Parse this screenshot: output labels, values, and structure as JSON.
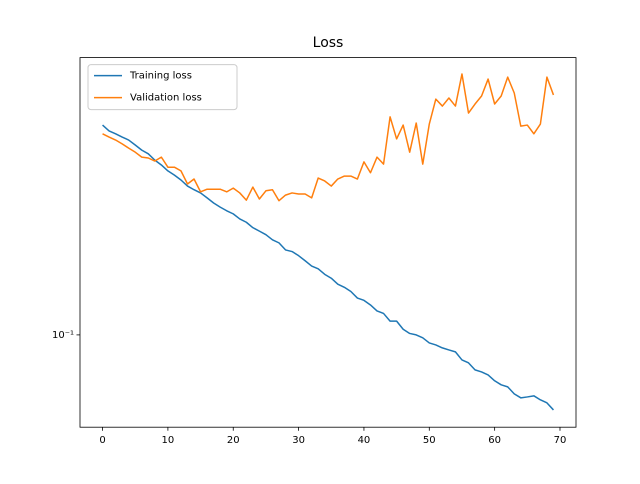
{
  "chart_data": {
    "type": "line",
    "title": "Loss",
    "x": [
      0,
      1,
      2,
      3,
      4,
      5,
      6,
      7,
      8,
      9,
      10,
      11,
      12,
      13,
      14,
      15,
      16,
      17,
      18,
      19,
      20,
      21,
      22,
      23,
      24,
      25,
      26,
      27,
      28,
      29,
      30,
      31,
      32,
      33,
      34,
      35,
      36,
      37,
      38,
      39,
      40,
      41,
      42,
      43,
      44,
      45,
      46,
      47,
      48,
      49,
      50,
      51,
      52,
      53,
      54,
      55,
      56,
      57,
      58,
      59,
      60,
      61,
      62,
      63,
      64,
      65,
      66,
      67,
      68,
      69
    ],
    "series": [
      {
        "name": "Training loss",
        "color": "#1f77b4",
        "values": [
          0.427,
          0.41,
          0.402,
          0.393,
          0.385,
          0.372,
          0.359,
          0.35,
          0.335,
          0.324,
          0.311,
          0.302,
          0.292,
          0.28,
          0.273,
          0.267,
          0.258,
          0.249,
          0.242,
          0.236,
          0.231,
          0.223,
          0.218,
          0.21,
          0.205,
          0.2,
          0.193,
          0.189,
          0.18,
          0.178,
          0.173,
          0.167,
          0.161,
          0.158,
          0.152,
          0.148,
          0.142,
          0.139,
          0.135,
          0.129,
          0.127,
          0.123,
          0.118,
          0.116,
          0.11,
          0.11,
          0.104,
          0.101,
          0.1,
          0.098,
          0.0946,
          0.0933,
          0.0914,
          0.0901,
          0.0889,
          0.0841,
          0.0824,
          0.0785,
          0.0774,
          0.0758,
          0.0728,
          0.0708,
          0.0698,
          0.0665,
          0.0647,
          0.0651,
          0.0656,
          0.0638,
          0.0625,
          0.0595
        ]
      },
      {
        "name": "Validation loss",
        "color": "#ff7f0e",
        "values": [
          0.402,
          0.393,
          0.385,
          0.375,
          0.364,
          0.354,
          0.342,
          0.34,
          0.333,
          0.342,
          0.319,
          0.319,
          0.311,
          0.284,
          0.294,
          0.269,
          0.274,
          0.274,
          0.274,
          0.269,
          0.276,
          0.267,
          0.254,
          0.278,
          0.256,
          0.271,
          0.273,
          0.253,
          0.263,
          0.267,
          0.265,
          0.265,
          0.258,
          0.296,
          0.29,
          0.28,
          0.294,
          0.3,
          0.3,
          0.294,
          0.331,
          0.307,
          0.342,
          0.326,
          0.452,
          0.388,
          0.427,
          0.354,
          0.433,
          0.326,
          0.43,
          0.511,
          0.487,
          0.515,
          0.487,
          0.608,
          0.464,
          0.494,
          0.522,
          0.587,
          0.494,
          0.522,
          0.595,
          0.533,
          0.424,
          0.427,
          0.402,
          0.43,
          0.595,
          0.526
        ]
      }
    ],
    "xlim": [
      -3.45,
      72.45
    ],
    "xticks": [
      0,
      10,
      20,
      30,
      40,
      50,
      60,
      70
    ],
    "ylim": [
      0.0528,
      0.681
    ],
    "yticks": [
      {
        "value": 0.1,
        "label": "10⁻¹"
      }
    ],
    "yscale": "log",
    "legend": "upper left"
  }
}
